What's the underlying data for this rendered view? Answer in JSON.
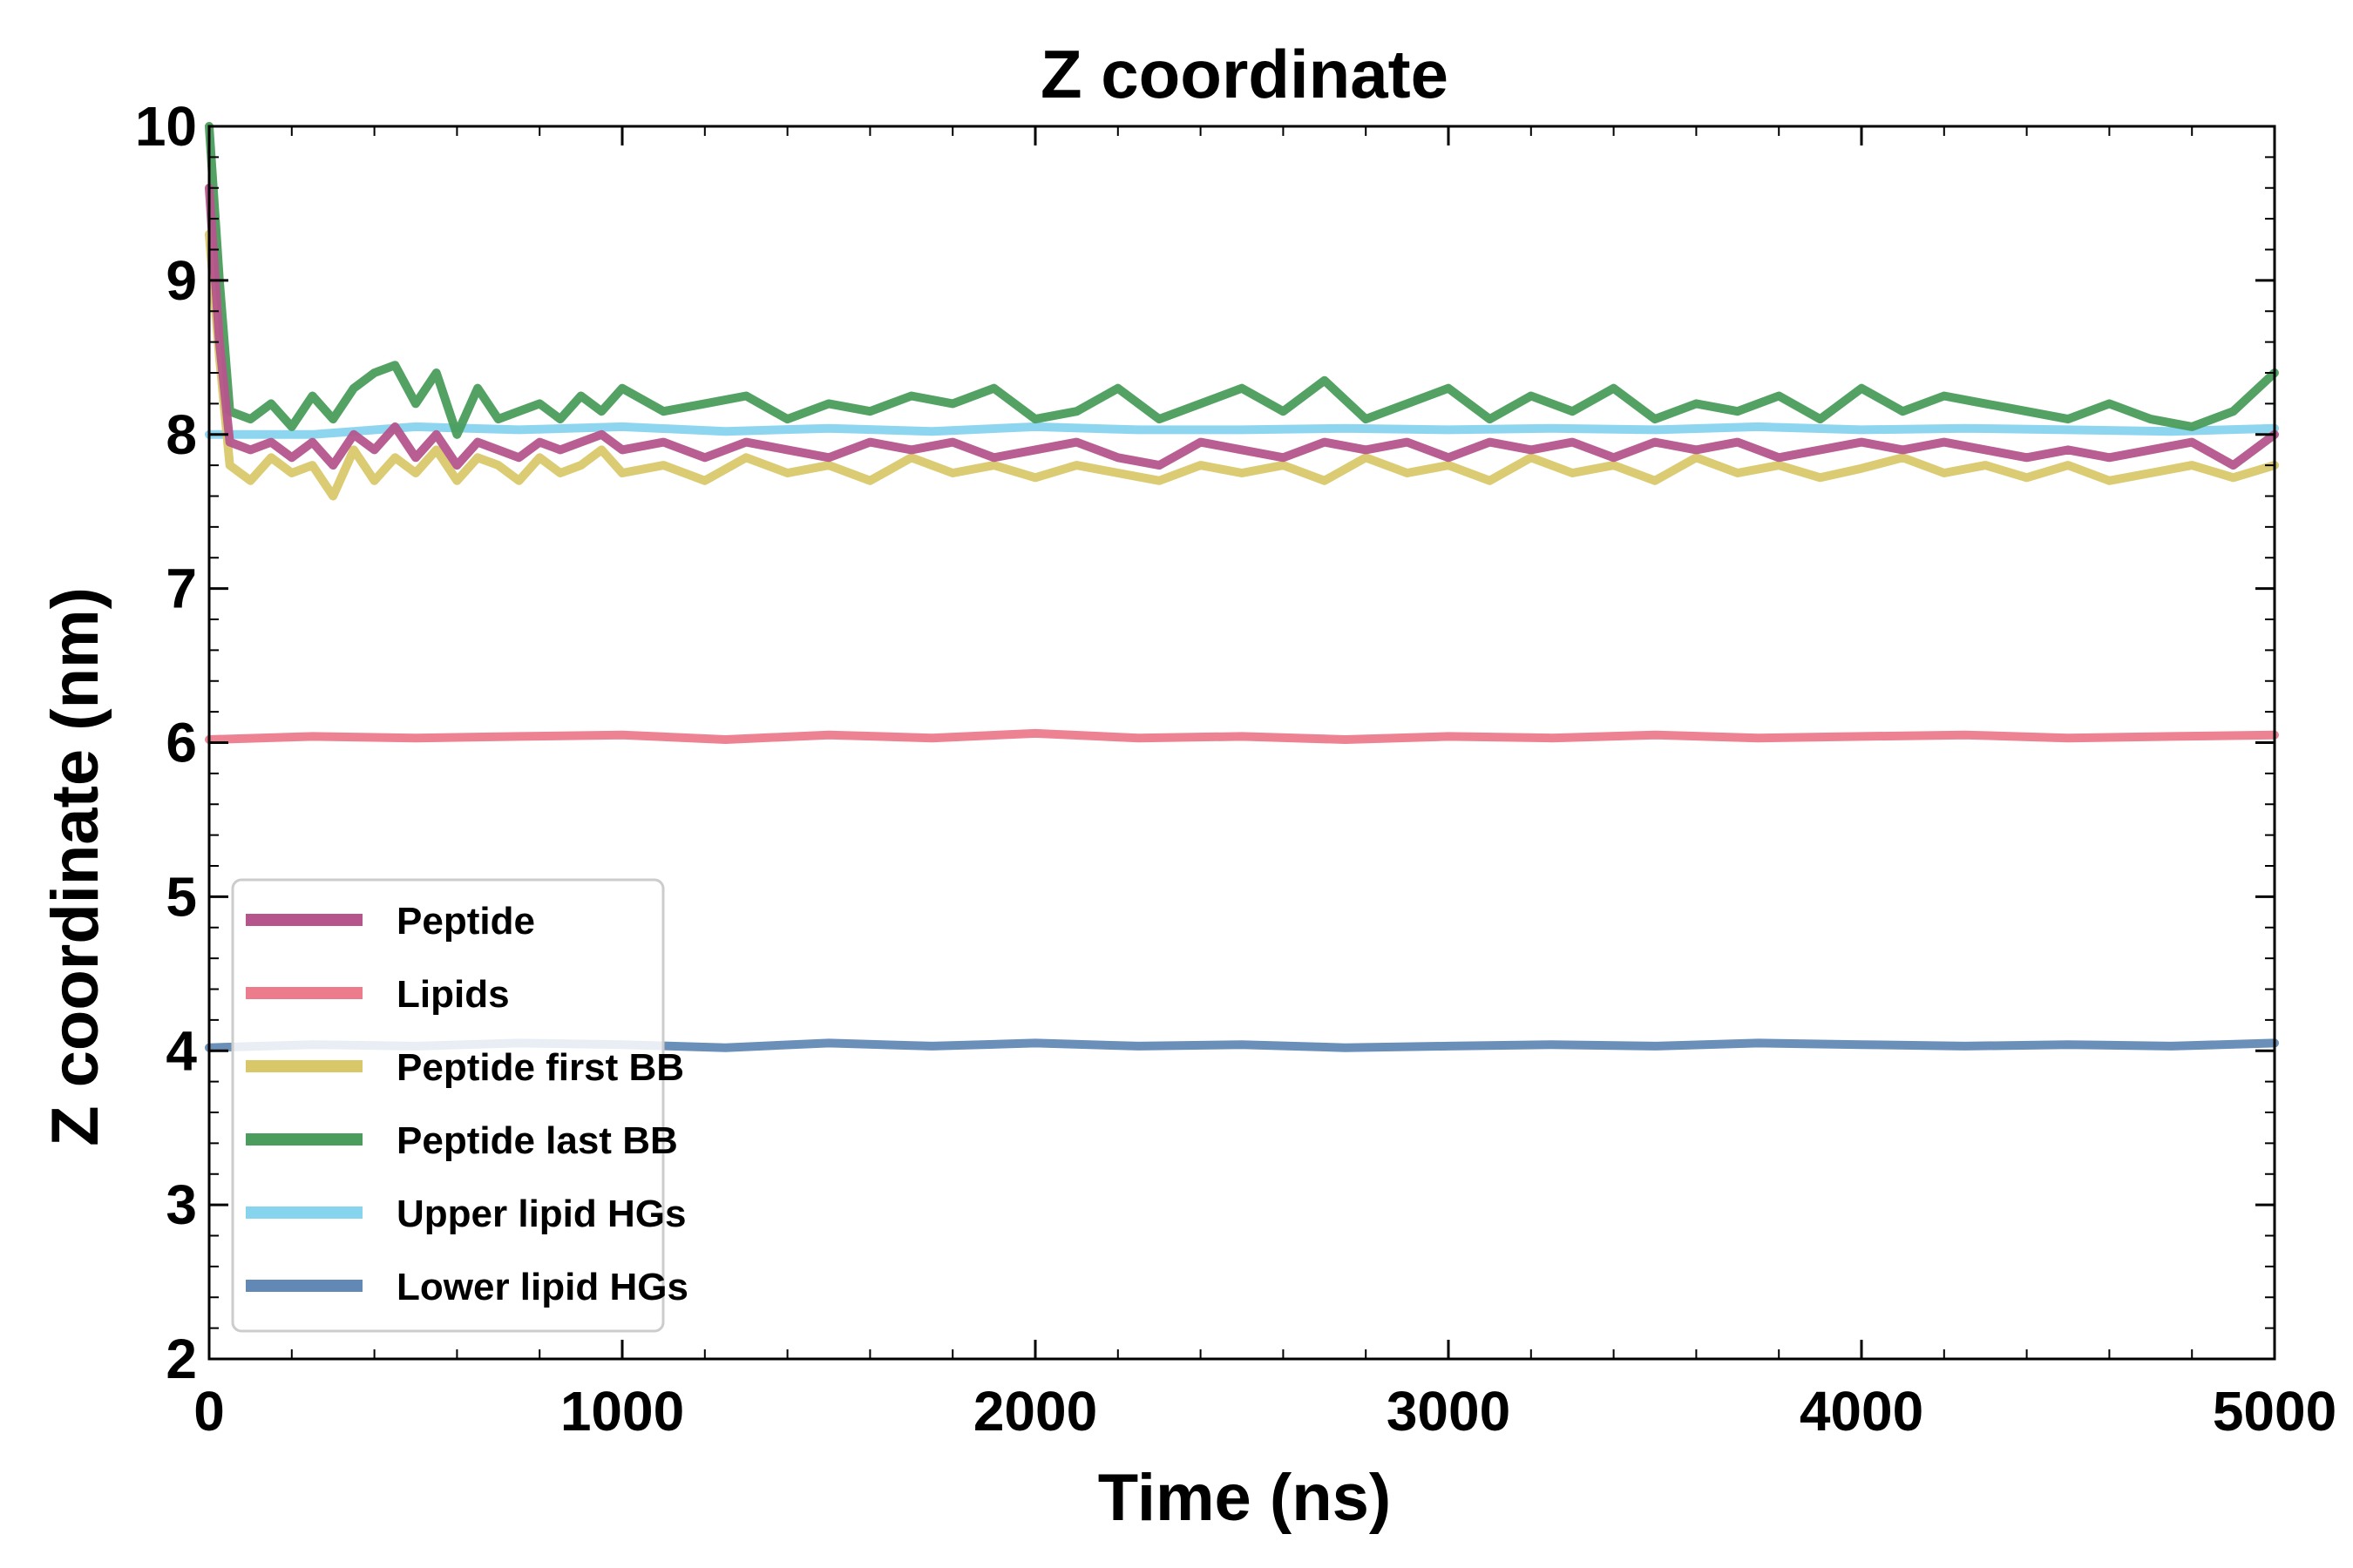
{
  "chart_data": {
    "type": "line",
    "title": "Z coordinate",
    "xlabel": "Time (ns)",
    "ylabel": "Z coordinate (nm)",
    "xlim": [
      0,
      5000
    ],
    "ylim": [
      2,
      10
    ],
    "xticks": [
      0,
      1000,
      2000,
      3000,
      4000,
      5000
    ],
    "yticks": [
      2,
      3,
      4,
      5,
      6,
      7,
      8,
      9,
      10
    ],
    "xtick_labels": [
      "0",
      "1000",
      "2000",
      "3000",
      "4000",
      "5000"
    ],
    "ytick_labels": [
      "2",
      "3",
      "4",
      "5",
      "6",
      "7",
      "8",
      "9",
      "10"
    ],
    "legend_position": "lower-left",
    "grid": false,
    "series": [
      {
        "name": "Upper lipid HGs",
        "color": "#88d4ee",
        "x": [
          0,
          250,
          500,
          750,
          1000,
          1250,
          1500,
          1750,
          2000,
          2250,
          2500,
          2750,
          3000,
          3250,
          3500,
          3750,
          4000,
          4250,
          4500,
          4750,
          5000
        ],
        "values": [
          8.0,
          8.0,
          8.05,
          8.03,
          8.05,
          8.02,
          8.04,
          8.02,
          8.05,
          8.03,
          8.03,
          8.04,
          8.03,
          8.04,
          8.03,
          8.05,
          8.03,
          8.04,
          8.03,
          8.02,
          8.04
        ]
      },
      {
        "name": "Peptide first BB",
        "color": "#d9c86a",
        "x": [
          0,
          25,
          50,
          100,
          150,
          200,
          250,
          300,
          350,
          400,
          450,
          500,
          550,
          600,
          650,
          700,
          750,
          800,
          850,
          900,
          950,
          1000,
          1100,
          1200,
          1300,
          1400,
          1500,
          1600,
          1700,
          1800,
          1900,
          2000,
          2100,
          2200,
          2300,
          2400,
          2500,
          2600,
          2700,
          2800,
          2900,
          3000,
          3100,
          3200,
          3300,
          3400,
          3500,
          3600,
          3700,
          3800,
          3900,
          4000,
          4100,
          4200,
          4300,
          4400,
          4500,
          4600,
          4700,
          4800,
          4900,
          5000
        ],
        "values": [
          9.3,
          8.5,
          7.8,
          7.7,
          7.85,
          7.75,
          7.8,
          7.6,
          7.9,
          7.7,
          7.85,
          7.75,
          7.9,
          7.7,
          7.85,
          7.8,
          7.7,
          7.85,
          7.75,
          7.8,
          7.9,
          7.75,
          7.8,
          7.7,
          7.85,
          7.75,
          7.8,
          7.7,
          7.85,
          7.75,
          7.8,
          7.72,
          7.8,
          7.75,
          7.7,
          7.8,
          7.75,
          7.8,
          7.7,
          7.85,
          7.75,
          7.8,
          7.7,
          7.85,
          7.75,
          7.8,
          7.7,
          7.85,
          7.75,
          7.8,
          7.72,
          7.78,
          7.85,
          7.75,
          7.8,
          7.72,
          7.8,
          7.7,
          7.75,
          7.8,
          7.72,
          7.8
        ]
      },
      {
        "name": "Peptide last BB",
        "color": "#4a9d5c",
        "x": [
          0,
          25,
          50,
          100,
          150,
          200,
          250,
          300,
          350,
          400,
          450,
          500,
          550,
          600,
          650,
          700,
          750,
          800,
          850,
          900,
          950,
          1000,
          1100,
          1200,
          1300,
          1400,
          1500,
          1600,
          1700,
          1800,
          1900,
          2000,
          2100,
          2200,
          2300,
          2400,
          2500,
          2600,
          2700,
          2800,
          2900,
          3000,
          3100,
          3200,
          3300,
          3400,
          3500,
          3600,
          3700,
          3800,
          3900,
          4000,
          4100,
          4200,
          4300,
          4400,
          4500,
          4600,
          4700,
          4800,
          4900,
          5000
        ],
        "values": [
          10.0,
          9.0,
          8.15,
          8.1,
          8.2,
          8.05,
          8.25,
          8.1,
          8.3,
          8.4,
          8.45,
          8.2,
          8.4,
          8.0,
          8.3,
          8.1,
          8.15,
          8.2,
          8.1,
          8.25,
          8.15,
          8.3,
          8.15,
          8.2,
          8.25,
          8.1,
          8.2,
          8.15,
          8.25,
          8.2,
          8.3,
          8.1,
          8.15,
          8.3,
          8.1,
          8.2,
          8.3,
          8.15,
          8.35,
          8.1,
          8.2,
          8.3,
          8.1,
          8.25,
          8.15,
          8.3,
          8.1,
          8.2,
          8.15,
          8.25,
          8.1,
          8.3,
          8.15,
          8.25,
          8.2,
          8.15,
          8.1,
          8.2,
          8.1,
          8.05,
          8.15,
          8.4
        ]
      },
      {
        "name": "Peptide",
        "color": "#b5558c",
        "x": [
          0,
          25,
          50,
          100,
          150,
          200,
          250,
          300,
          350,
          400,
          450,
          500,
          550,
          600,
          650,
          700,
          750,
          800,
          850,
          900,
          950,
          1000,
          1100,
          1200,
          1300,
          1400,
          1500,
          1600,
          1700,
          1800,
          1900,
          2000,
          2100,
          2200,
          2300,
          2400,
          2500,
          2600,
          2700,
          2800,
          2900,
          3000,
          3100,
          3200,
          3300,
          3400,
          3500,
          3600,
          3700,
          3800,
          3900,
          4000,
          4100,
          4200,
          4300,
          4400,
          4500,
          4600,
          4700,
          4800,
          4900,
          5000
        ],
        "values": [
          9.6,
          8.6,
          7.95,
          7.9,
          7.95,
          7.85,
          7.95,
          7.8,
          8.0,
          7.9,
          8.05,
          7.85,
          8.0,
          7.8,
          7.95,
          7.9,
          7.85,
          7.95,
          7.9,
          7.95,
          8.0,
          7.9,
          7.95,
          7.85,
          7.95,
          7.9,
          7.85,
          7.95,
          7.9,
          7.95,
          7.85,
          7.9,
          7.95,
          7.85,
          7.8,
          7.95,
          7.9,
          7.85,
          7.95,
          7.9,
          7.95,
          7.85,
          7.95,
          7.9,
          7.95,
          7.85,
          7.95,
          7.9,
          7.95,
          7.85,
          7.9,
          7.95,
          7.9,
          7.95,
          7.9,
          7.85,
          7.9,
          7.85,
          7.9,
          7.95,
          7.8,
          8.0
        ]
      },
      {
        "name": "Lipids",
        "color": "#ec7b8c",
        "x": [
          0,
          250,
          500,
          750,
          1000,
          1250,
          1500,
          1750,
          2000,
          2250,
          2500,
          2750,
          3000,
          3250,
          3500,
          3750,
          4000,
          4250,
          4500,
          4750,
          5000
        ],
        "values": [
          6.02,
          6.04,
          6.03,
          6.04,
          6.05,
          6.02,
          6.05,
          6.03,
          6.06,
          6.03,
          6.04,
          6.02,
          6.04,
          6.03,
          6.05,
          6.03,
          6.04,
          6.05,
          6.03,
          6.04,
          6.05
        ]
      },
      {
        "name": "Lower lipid HGs",
        "color": "#6289b5",
        "x": [
          0,
          250,
          500,
          750,
          1000,
          1250,
          1500,
          1750,
          2000,
          2250,
          2500,
          2750,
          3000,
          3250,
          3500,
          3750,
          4000,
          4250,
          4500,
          4750,
          5000
        ],
        "values": [
          4.02,
          4.04,
          4.03,
          4.05,
          4.04,
          4.02,
          4.05,
          4.03,
          4.05,
          4.03,
          4.04,
          4.02,
          4.03,
          4.04,
          4.03,
          4.05,
          4.04,
          4.03,
          4.04,
          4.03,
          4.05
        ]
      }
    ],
    "legend_order": [
      "Peptide",
      "Lipids",
      "Peptide first BB",
      "Peptide last BB",
      "Upper lipid HGs",
      "Lower lipid HGs"
    ]
  }
}
